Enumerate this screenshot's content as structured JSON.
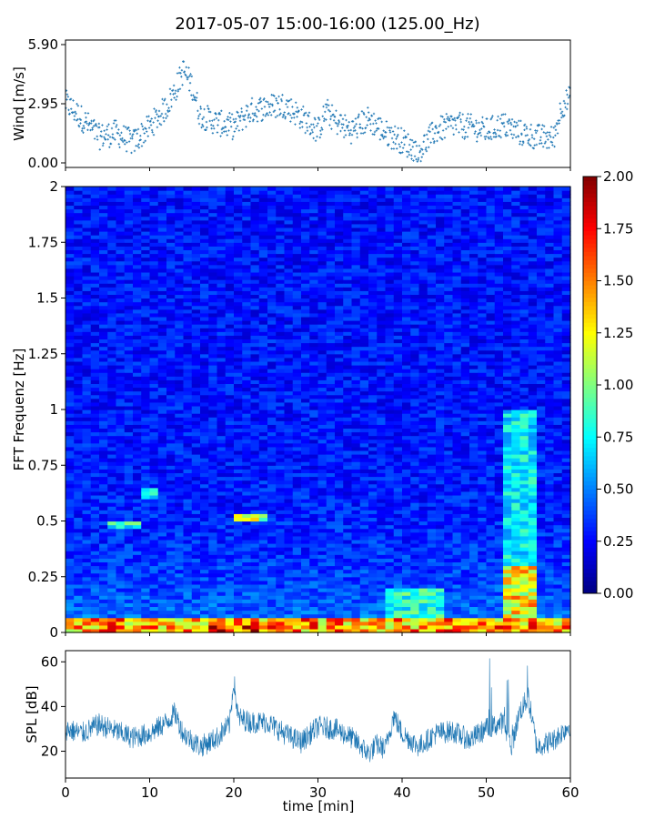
{
  "figure": {
    "title": "2017-05-07 15:00-16:00 (125.00_Hz)"
  },
  "chart_data": [
    {
      "type": "scatter",
      "ylabel": "Wind [m/s]",
      "xlim": [
        0,
        60
      ],
      "ylim": [
        0,
        5.9
      ],
      "yticks": [
        "0.00",
        "2.95",
        "5.90"
      ],
      "color": "#1f77b4",
      "marker": "+",
      "series": [
        {
          "trend_min": [
            0,
            2,
            4,
            6,
            8,
            10,
            11,
            12,
            13,
            14,
            15,
            16,
            18,
            20,
            22,
            24,
            26,
            28,
            30,
            31,
            32,
            34,
            36,
            38,
            40,
            41,
            42,
            44,
            46,
            48,
            50,
            52,
            54,
            56,
            58,
            59,
            60
          ],
          "trend_value": [
            3.0,
            2.2,
            1.3,
            1.5,
            1.0,
            1.8,
            2.3,
            2.8,
            3.6,
            4.6,
            3.9,
            2.4,
            2.0,
            1.8,
            2.6,
            2.8,
            2.9,
            2.3,
            1.6,
            2.6,
            2.1,
            1.6,
            2.2,
            1.5,
            1.1,
            0.8,
            0.6,
            1.6,
            1.9,
            1.8,
            1.6,
            1.9,
            1.5,
            1.3,
            1.2,
            2.9,
            3.2
          ]
        }
      ]
    },
    {
      "type": "heatmap",
      "ylabel": "FFT Frequenz [Hz]",
      "xlim": [
        0,
        60
      ],
      "ylim": [
        0,
        2
      ],
      "yticks": [
        "0",
        "0.25",
        "0.5",
        "0.75",
        "1",
        "1.25",
        "1.5",
        "1.75",
        "2"
      ],
      "colormap": "jet",
      "colorbar": {
        "range": [
          0,
          2
        ],
        "ticks": [
          "0.00",
          "0.25",
          "0.50",
          "0.75",
          "1.00",
          "1.25",
          "1.50",
          "1.75",
          "2.00"
        ]
      },
      "features": [
        {
          "t_start_min": 0,
          "t_end_min": 60,
          "f_low_hz": 0,
          "f_high_hz": 0.06,
          "level": 1.6
        },
        {
          "t_start_min": 17,
          "t_end_min": 23,
          "f_low_hz": 0,
          "f_high_hz": 0.04,
          "level": 1.9
        },
        {
          "t_start_min": 52,
          "t_end_min": 56,
          "f_low_hz": 0,
          "f_high_hz": 1.0,
          "level": 0.8
        },
        {
          "t_start_min": 52,
          "t_end_min": 56,
          "f_low_hz": 0,
          "f_high_hz": 0.3,
          "level": 1.4
        },
        {
          "t_start_min": 38,
          "t_end_min": 45,
          "f_low_hz": 0,
          "f_high_hz": 0.2,
          "level": 0.9
        },
        {
          "t_start_min": 9.5,
          "t_end_min": 11,
          "f_low_hz": 0.6,
          "f_high_hz": 0.65,
          "level": 0.8
        },
        {
          "t_start_min": 20,
          "t_end_min": 24,
          "f_low_hz": 0.5,
          "f_high_hz": 0.53,
          "level": 1.2
        },
        {
          "t_start_min": 5,
          "t_end_min": 9,
          "f_low_hz": 0.47,
          "f_high_hz": 0.5,
          "level": 0.9
        }
      ]
    },
    {
      "type": "line",
      "ylabel": "SPL [dB]",
      "xlabel": "time [min]",
      "xlim": [
        0,
        60
      ],
      "ylim": [
        8,
        65
      ],
      "yticks": [
        "20",
        "40",
        "60"
      ],
      "xticks": [
        "0",
        "10",
        "20",
        "30",
        "40",
        "50",
        "60"
      ],
      "color": "#1f77b4",
      "series": [
        {
          "x": [
            0,
            2,
            4,
            6,
            8,
            10,
            12,
            13,
            14,
            16,
            18,
            19.5,
            20,
            20.5,
            22,
            24,
            26,
            28,
            30,
            32,
            34,
            36,
            37,
            38,
            39,
            40,
            42,
            44,
            46,
            48,
            50,
            52,
            53,
            54,
            55,
            56,
            58,
            60
          ],
          "y": [
            30,
            28,
            32,
            29,
            26,
            28,
            33,
            37,
            28,
            22,
            26,
            32,
            52,
            35,
            33,
            33,
            28,
            24,
            31,
            30,
            26,
            19,
            23,
            21,
            36,
            28,
            22,
            28,
            29,
            25,
            30,
            33,
            22,
            38,
            44,
            22,
            25,
            32
          ]
        }
      ]
    }
  ]
}
